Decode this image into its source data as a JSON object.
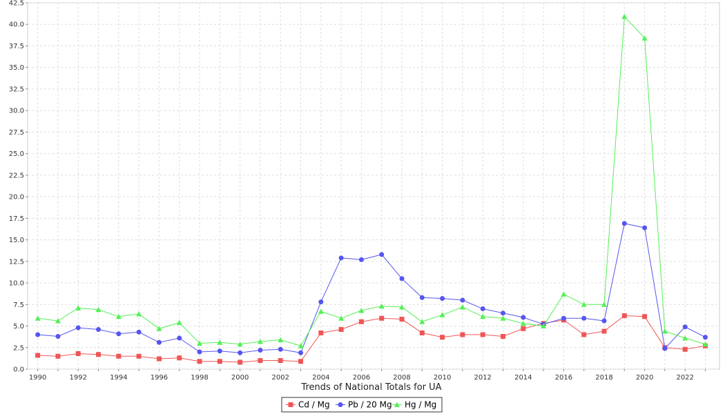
{
  "chart_data": {
    "type": "line",
    "xlabel": "Trends of National Totals for UA",
    "ylabel": "",
    "xlim": [
      1989.5,
      2023.7
    ],
    "ylim": [
      0,
      42.5
    ],
    "y_ticks": [
      "0.0",
      "2.5",
      "5.0",
      "7.5",
      "10.0",
      "12.5",
      "15.0",
      "17.5",
      "20.0",
      "22.5",
      "25.0",
      "27.5",
      "30.0",
      "32.5",
      "35.0",
      "37.5",
      "40.0",
      "42.5"
    ],
    "x_ticks": [
      "1990",
      "1992",
      "1994",
      "1996",
      "1998",
      "2000",
      "2002",
      "2004",
      "2006",
      "2008",
      "2010",
      "2012",
      "2014",
      "2016",
      "2018",
      "2020",
      "2022"
    ],
    "grid": true,
    "legend_position": "bottom",
    "x": [
      1990,
      1991,
      1992,
      1993,
      1994,
      1995,
      1996,
      1997,
      1998,
      1999,
      2000,
      2001,
      2002,
      2003,
      2004,
      2005,
      2006,
      2007,
      2008,
      2009,
      2010,
      2011,
      2012,
      2013,
      2014,
      2015,
      2016,
      2017,
      2018,
      2019,
      2020,
      2021,
      2022,
      2023
    ],
    "series": [
      {
        "name": "Cd / Mg",
        "color": "#f05555",
        "marker": "square",
        "values": [
          1.6,
          1.5,
          1.8,
          1.7,
          1.5,
          1.5,
          1.2,
          1.3,
          0.9,
          0.9,
          0.8,
          1.0,
          1.0,
          0.9,
          4.2,
          4.6,
          5.5,
          5.9,
          5.8,
          4.2,
          3.7,
          4.0,
          4.0,
          3.8,
          4.7,
          5.3,
          5.7,
          4.0,
          4.4,
          6.2,
          6.1,
          2.5,
          2.3,
          2.7
        ]
      },
      {
        "name": "Pb / 20 Mg",
        "color": "#5555f0",
        "marker": "circle",
        "values": [
          4.0,
          3.8,
          4.8,
          4.6,
          4.1,
          4.3,
          3.1,
          3.6,
          2.0,
          2.1,
          1.9,
          2.2,
          2.3,
          1.9,
          7.8,
          12.9,
          12.7,
          13.3,
          10.5,
          8.3,
          8.2,
          8.0,
          7.0,
          6.5,
          6.0,
          5.2,
          5.9,
          5.9,
          5.6,
          16.9,
          16.4,
          2.4,
          4.9,
          3.7
        ]
      },
      {
        "name": "Hg / Mg",
        "color": "#55f055",
        "marker": "triangle",
        "values": [
          5.9,
          5.6,
          7.1,
          6.9,
          6.1,
          6.4,
          4.7,
          5.4,
          3.0,
          3.1,
          2.9,
          3.2,
          3.4,
          2.7,
          6.7,
          5.9,
          6.8,
          7.3,
          7.2,
          5.5,
          6.3,
          7.2,
          6.1,
          5.9,
          5.3,
          5.0,
          8.7,
          7.5,
          7.5,
          40.9,
          38.4,
          4.4,
          3.6,
          2.9
        ]
      }
    ]
  }
}
